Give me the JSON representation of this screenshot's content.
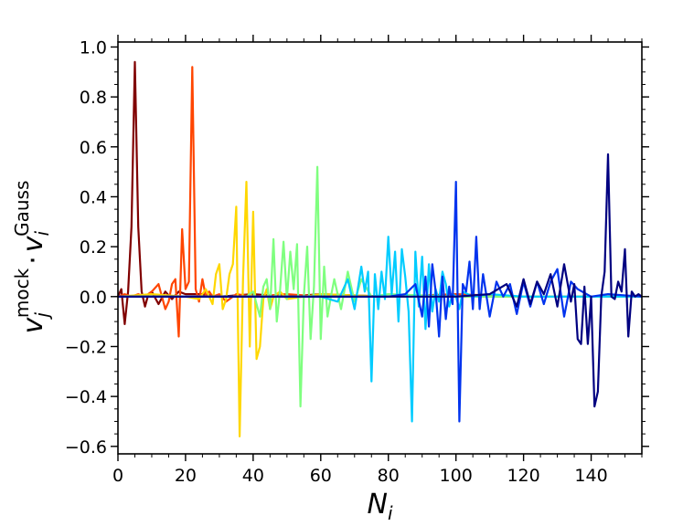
{
  "chart_data": {
    "type": "line",
    "xlabel_base": "N",
    "xlabel_sub": "i",
    "ylabel_parts": {
      "v1": "v",
      "v1_sub": "j",
      "v1_sup": "mock",
      "dot": "·",
      "v2": "v",
      "v2_sub": "i",
      "v2_sup": "Gauss"
    },
    "xlim": [
      0,
      155
    ],
    "ylim": [
      -0.63,
      1.02
    ],
    "x_ticks": [
      0,
      20,
      40,
      60,
      80,
      100,
      120,
      140
    ],
    "y_ticks": [
      -0.6,
      -0.4,
      -0.2,
      0.0,
      0.2,
      0.4,
      0.6,
      0.8,
      1.0
    ],
    "y_tick_labels": [
      "−0.6",
      "−0.4",
      "−0.2",
      "0.0",
      "0.2",
      "0.4",
      "0.6",
      "0.8",
      "1.0"
    ],
    "grid": false,
    "legend": "none",
    "series": [
      {
        "color": "#800000",
        "x": [
          0,
          1,
          2,
          3,
          4,
          5,
          6,
          7,
          8,
          9,
          10,
          12,
          14,
          16,
          18,
          20,
          25,
          30,
          40,
          50,
          60,
          80,
          100,
          120,
          140,
          155
        ],
        "y": [
          0.0,
          0.03,
          -0.11,
          0.02,
          0.28,
          0.94,
          0.28,
          0.02,
          -0.04,
          0.01,
          0.02,
          -0.03,
          0.02,
          -0.01,
          0.02,
          0.01,
          0.01,
          0.0,
          0.01,
          0.0,
          0.01,
          0.0,
          0.0,
          0.0,
          0.0,
          0.0
        ]
      },
      {
        "color": "#ff4500",
        "x": [
          0,
          2,
          4,
          6,
          8,
          10,
          12,
          14,
          15,
          16,
          17,
          18,
          19,
          20,
          21,
          22,
          23,
          24,
          25,
          26,
          27,
          28,
          30,
          32,
          35,
          40,
          50,
          60,
          80,
          100,
          120,
          140,
          155
        ],
        "y": [
          0.0,
          0.01,
          0.0,
          0.01,
          0.0,
          0.02,
          0.05,
          -0.05,
          -0.02,
          0.05,
          0.07,
          -0.16,
          0.27,
          0.03,
          0.06,
          0.92,
          0.03,
          -0.02,
          0.07,
          0.0,
          0.02,
          0.0,
          0.01,
          -0.02,
          0.01,
          0.0,
          0.01,
          0.0,
          0.0,
          0.01,
          0.0,
          0.0,
          0.0
        ]
      },
      {
        "color": "#ffd700",
        "x": [
          0,
          10,
          20,
          24,
          26,
          28,
          29,
          30,
          31,
          32,
          33,
          34,
          35,
          36,
          37,
          38,
          39,
          40,
          41,
          42,
          43,
          44,
          45,
          46,
          48,
          50,
          55,
          60,
          80,
          100,
          120,
          140,
          155
        ],
        "y": [
          0.0,
          0.01,
          0.0,
          -0.01,
          0.03,
          -0.03,
          0.09,
          0.13,
          -0.05,
          -0.01,
          0.09,
          0.13,
          0.36,
          -0.56,
          0.07,
          0.46,
          -0.2,
          0.34,
          -0.25,
          -0.2,
          -0.01,
          0.03,
          -0.05,
          0.0,
          0.02,
          -0.01,
          0.0,
          0.01,
          0.0,
          0.0,
          0.0,
          0.0,
          0.0
        ]
      },
      {
        "color": "#7fff7f",
        "x": [
          0,
          20,
          38,
          40,
          42,
          43,
          44,
          45,
          46,
          47,
          48,
          49,
          50,
          51,
          52,
          53,
          54,
          55,
          56,
          57,
          58,
          59,
          60,
          61,
          62,
          63,
          64,
          66,
          68,
          70,
          72,
          75,
          80,
          100,
          120,
          140,
          155
        ],
        "y": [
          0.0,
          0.0,
          0.0,
          0.02,
          -0.08,
          0.04,
          0.07,
          -0.05,
          0.23,
          -0.1,
          0.03,
          0.22,
          -0.01,
          0.18,
          0.03,
          0.21,
          -0.44,
          0.0,
          0.2,
          -0.17,
          0.04,
          0.52,
          -0.17,
          0.12,
          -0.08,
          0.0,
          0.07,
          -0.05,
          0.1,
          -0.02,
          0.07,
          0.0,
          0.01,
          0.0,
          0.0,
          0.0,
          0.0
        ]
      },
      {
        "color": "#00ccff",
        "x": [
          0,
          40,
          60,
          65,
          68,
          70,
          72,
          73,
          74,
          75,
          76,
          77,
          78,
          79,
          80,
          81,
          82,
          83,
          84,
          85,
          86,
          87,
          88,
          89,
          90,
          91,
          92,
          93,
          94,
          95,
          96,
          97,
          98,
          99,
          100,
          101,
          102,
          105,
          110,
          120,
          140,
          155
        ],
        "y": [
          0.0,
          0.0,
          0.0,
          -0.02,
          0.07,
          -0.05,
          0.12,
          0.02,
          0.1,
          -0.34,
          0.09,
          -0.05,
          0.1,
          -0.01,
          0.24,
          0.01,
          0.18,
          -0.1,
          0.19,
          0.08,
          -0.06,
          -0.5,
          0.18,
          -0.04,
          0.16,
          -0.13,
          0.13,
          -0.06,
          0.03,
          -0.02,
          0.1,
          0.05,
          -0.04,
          0.01,
          0.0,
          -0.05,
          0.02,
          0.0,
          0.01,
          0.0,
          0.0,
          0.0
        ]
      },
      {
        "color": "#0033ee",
        "x": [
          0,
          60,
          80,
          85,
          88,
          90,
          91,
          92,
          93,
          94,
          95,
          96,
          97,
          98,
          99,
          100,
          101,
          102,
          103,
          104,
          105,
          106,
          107,
          108,
          110,
          112,
          114,
          116,
          118,
          120,
          122,
          124,
          126,
          128,
          130,
          132,
          134,
          136,
          140,
          145,
          155
        ],
        "y": [
          0.0,
          0.0,
          0.0,
          0.01,
          0.05,
          -0.08,
          0.08,
          -0.12,
          0.13,
          0.02,
          -0.16,
          0.08,
          -0.09,
          0.04,
          -0.03,
          0.46,
          -0.5,
          0.05,
          0.02,
          0.14,
          -0.05,
          0.24,
          -0.05,
          0.09,
          -0.08,
          0.06,
          0.0,
          0.05,
          -0.07,
          0.06,
          -0.04,
          0.06,
          -0.03,
          0.06,
          0.11,
          -0.08,
          0.06,
          0.03,
          0.0,
          0.01,
          0.0
        ]
      },
      {
        "color": "#000080",
        "x": [
          0,
          80,
          100,
          110,
          115,
          118,
          120,
          122,
          124,
          126,
          128,
          130,
          132,
          134,
          135,
          136,
          137,
          138,
          139,
          140,
          141,
          142,
          143,
          144,
          145,
          146,
          147,
          148,
          149,
          150,
          151,
          152,
          153,
          154,
          155
        ],
        "y": [
          0.0,
          0.0,
          0.0,
          0.01,
          0.05,
          -0.04,
          0.07,
          -0.03,
          0.06,
          0.01,
          0.09,
          -0.04,
          0.13,
          -0.02,
          0.05,
          -0.17,
          -0.19,
          0.04,
          -0.19,
          0.0,
          -0.44,
          -0.38,
          0.0,
          0.1,
          0.57,
          0.0,
          -0.01,
          0.06,
          0.02,
          0.19,
          -0.16,
          0.02,
          0.0,
          0.01,
          0.0
        ]
      }
    ]
  }
}
